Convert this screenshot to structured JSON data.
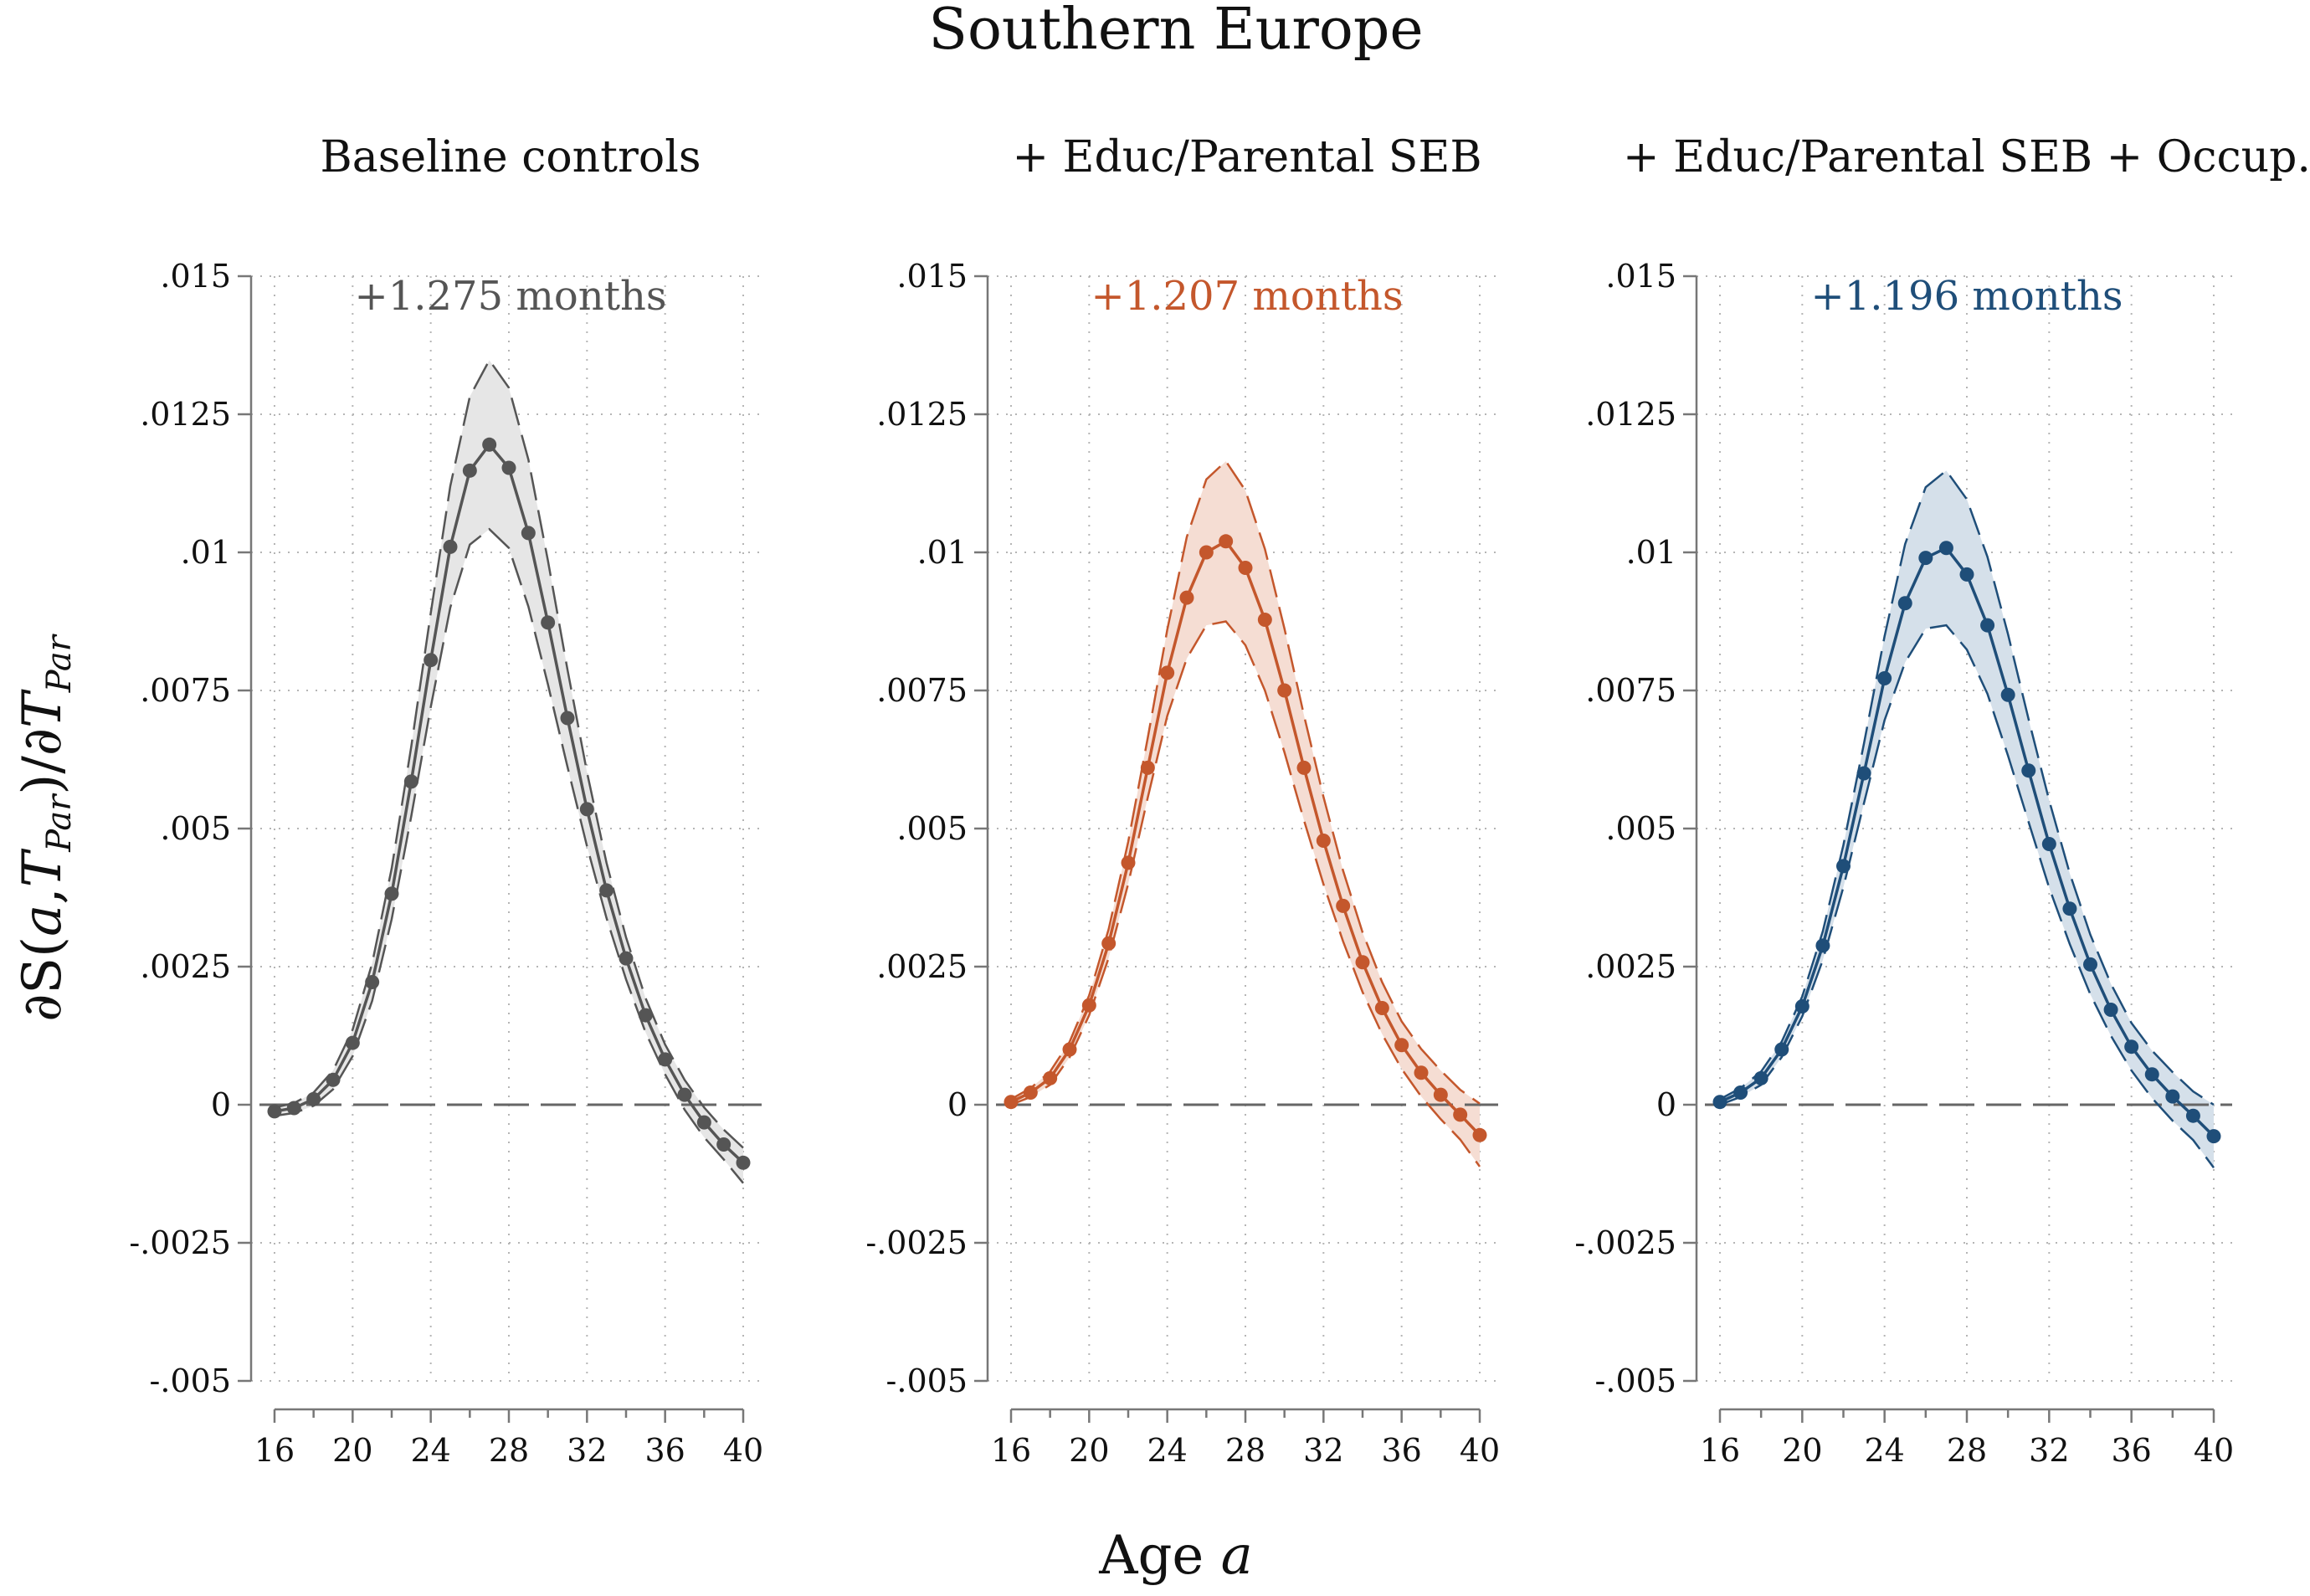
{
  "figure": {
    "title": "Southern Europe",
    "xlabel_prefix": "Age",
    "xlabel_var": "a",
    "ylabel_parts": [
      "∂S(",
      "a",
      ",",
      "T",
      "Par",
      ")/∂",
      "T",
      "Par"
    ],
    "ylabel_text": "∂S(a,T_Par)/∂T_Par"
  },
  "chart_data": [
    {
      "type": "line",
      "title": "Baseline controls",
      "annotation": "+1.275 months",
      "color": "#555555",
      "band_color": "#e6e6e6",
      "x": [
        16,
        17,
        18,
        19,
        20,
        21,
        22,
        23,
        24,
        25,
        26,
        27,
        28,
        29,
        30,
        31,
        32,
        33,
        34,
        35,
        36,
        37,
        38,
        39,
        40
      ],
      "values": [
        -0.00012,
        -6e-05,
        0.0001,
        0.00045,
        0.00112,
        0.00222,
        0.00382,
        0.00585,
        0.00805,
        0.0101,
        0.01148,
        0.01195,
        0.01153,
        0.01035,
        0.00873,
        0.007,
        0.00535,
        0.00388,
        0.00265,
        0.00162,
        0.00082,
        0.00018,
        -0.00032,
        -0.00072,
        -0.00105
      ],
      "ci_upper": [
        -5e-05,
        3e-05,
        0.00022,
        0.00062,
        0.00136,
        0.00256,
        0.00428,
        0.00648,
        0.0089,
        0.0112,
        0.01282,
        0.01348,
        0.01298,
        0.01168,
        0.00985,
        0.00788,
        0.00602,
        0.00438,
        0.00303,
        0.00193,
        0.00109,
        0.00045,
        -5e-05,
        -0.00045,
        -0.00078
      ],
      "ci_lower": [
        -0.0002,
        -0.00015,
        -2e-05,
        0.00028,
        0.00088,
        0.00188,
        0.00336,
        0.00522,
        0.0072,
        0.009,
        0.01014,
        0.01042,
        0.01008,
        0.00902,
        0.00761,
        0.00612,
        0.00468,
        0.00338,
        0.00227,
        0.00131,
        0.00055,
        -9e-05,
        -0.00059,
        -0.00099,
        -0.00142
      ],
      "xlim": [
        16,
        40
      ],
      "ylim": [
        -0.005,
        0.015
      ],
      "xticks": [
        16,
        20,
        24,
        28,
        32,
        36,
        40
      ],
      "xtick_labels": [
        "16",
        "20",
        "24",
        "28",
        "32",
        "36",
        "40"
      ],
      "yticks": [
        0.015,
        0.0125,
        0.01,
        0.0075,
        0.005,
        0.0025,
        0,
        -0.0025,
        -0.005
      ],
      "ytick_labels": [
        ".015",
        ".0125",
        ".01",
        ".0075",
        ".005",
        ".0025",
        "0",
        "-.0025",
        "-.005"
      ],
      "xlabel": "Age a",
      "ylabel": "∂S(a,T_Par)/∂T_Par",
      "grid": true,
      "reference_line": 0
    },
    {
      "type": "line",
      "title": "+ Educ/Parental SEB",
      "annotation": "+1.207 months",
      "color": "#c4572c",
      "band_color": "#f5ddd3",
      "x": [
        16,
        17,
        18,
        19,
        20,
        21,
        22,
        23,
        24,
        25,
        26,
        27,
        28,
        29,
        30,
        31,
        32,
        33,
        34,
        35,
        36,
        37,
        38,
        39,
        40
      ],
      "values": [
        5e-05,
        0.00022,
        0.00048,
        0.001,
        0.0018,
        0.00292,
        0.00438,
        0.0061,
        0.00782,
        0.00918,
        0.01,
        0.0102,
        0.00972,
        0.00878,
        0.0075,
        0.0061,
        0.00478,
        0.0036,
        0.00258,
        0.00175,
        0.00108,
        0.00058,
        0.00018,
        -0.00018,
        -0.00055
      ],
      "ci_upper": [
        0.0001,
        0.0003,
        0.0006,
        0.00114,
        0.00198,
        0.00318,
        0.00476,
        0.00664,
        0.0086,
        0.01028,
        0.01132,
        0.01165,
        0.01112,
        0.01006,
        0.00862,
        0.00705,
        0.00557,
        0.00424,
        0.00312,
        0.00222,
        0.00151,
        0.00101,
        0.00062,
        0.00027,
        2e-05
      ],
      "ci_lower": [
        0.0,
        0.00014,
        0.00036,
        0.00086,
        0.00162,
        0.00266,
        0.004,
        0.00556,
        0.00704,
        0.00808,
        0.00868,
        0.00875,
        0.00832,
        0.0075,
        0.00638,
        0.00515,
        0.00399,
        0.00296,
        0.00204,
        0.00128,
        0.00065,
        0.00015,
        -0.00026,
        -0.00063,
        -0.00112
      ],
      "xlim": [
        16,
        40
      ],
      "ylim": [
        -0.005,
        0.015
      ],
      "xticks": [
        16,
        20,
        24,
        28,
        32,
        36,
        40
      ],
      "xtick_labels": [
        "16",
        "20",
        "24",
        "28",
        "32",
        "36",
        "40"
      ],
      "yticks": [
        0.015,
        0.0125,
        0.01,
        0.0075,
        0.005,
        0.0025,
        0,
        -0.0025,
        -0.005
      ],
      "ytick_labels": [
        ".015",
        ".0125",
        ".01",
        ".0075",
        ".005",
        ".0025",
        "0",
        "-.0025",
        "-.005"
      ],
      "xlabel": "Age a",
      "ylabel": "∂S(a,T_Par)/∂T_Par",
      "grid": true,
      "reference_line": 0
    },
    {
      "type": "line",
      "title": "+ Educ/Parental SEB + Occup.",
      "annotation": "+1.196 months",
      "color": "#1f4e79",
      "band_color": "#d5e0ea",
      "x": [
        16,
        17,
        18,
        19,
        20,
        21,
        22,
        23,
        24,
        25,
        26,
        27,
        28,
        29,
        30,
        31,
        32,
        33,
        34,
        35,
        36,
        37,
        38,
        39,
        40
      ],
      "values": [
        5e-05,
        0.00022,
        0.00048,
        0.001,
        0.00178,
        0.00288,
        0.00432,
        0.006,
        0.00772,
        0.00908,
        0.0099,
        0.01008,
        0.0096,
        0.00868,
        0.00742,
        0.00605,
        0.00472,
        0.00355,
        0.00254,
        0.00172,
        0.00105,
        0.00055,
        0.00015,
        -0.0002,
        -0.00057
      ],
      "ci_upper": [
        0.0001,
        0.0003,
        0.0006,
        0.00114,
        0.00196,
        0.00314,
        0.0047,
        0.00654,
        0.00848,
        0.01015,
        0.01118,
        0.01148,
        0.01096,
        0.00992,
        0.00852,
        0.00698,
        0.00551,
        0.00419,
        0.00308,
        0.00219,
        0.00148,
        0.00098,
        0.00059,
        0.00024,
        0.0
      ],
      "ci_lower": [
        0.0,
        0.00014,
        0.00036,
        0.00086,
        0.0016,
        0.00262,
        0.00394,
        0.00546,
        0.00696,
        0.00801,
        0.00862,
        0.00868,
        0.00824,
        0.00744,
        0.00632,
        0.00512,
        0.00393,
        0.00291,
        0.002,
        0.00125,
        0.00062,
        0.00012,
        -0.00029,
        -0.00064,
        -0.00114
      ],
      "xlim": [
        16,
        40
      ],
      "ylim": [
        -0.005,
        0.015
      ],
      "xticks": [
        16,
        20,
        24,
        28,
        32,
        36,
        40
      ],
      "xtick_labels": [
        "16",
        "20",
        "24",
        "28",
        "32",
        "36",
        "40"
      ],
      "yticks": [
        0.015,
        0.0125,
        0.01,
        0.0075,
        0.005,
        0.0025,
        0,
        -0.0025,
        -0.005
      ],
      "ytick_labels": [
        ".015",
        ".0125",
        ".01",
        ".0075",
        ".005",
        ".0025",
        "0",
        "-.0025",
        "-.005"
      ],
      "xlabel": "Age a",
      "ylabel": "∂S(a,T_Par)/∂T_Par",
      "grid": true,
      "reference_line": 0
    }
  ]
}
